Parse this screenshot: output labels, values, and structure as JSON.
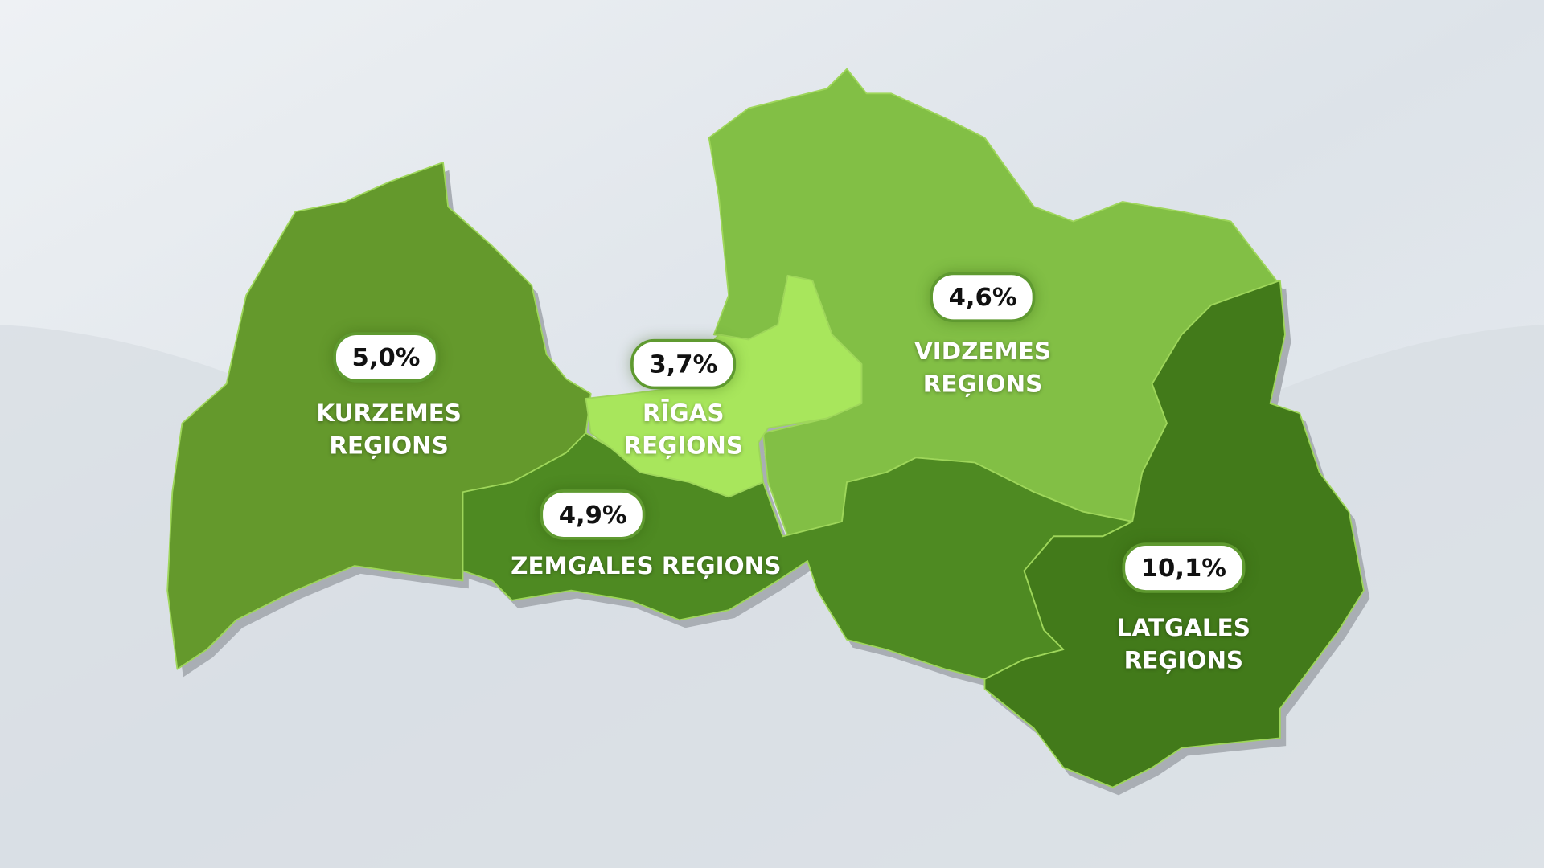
{
  "colors": {
    "kurzeme": "#64992c",
    "riga": "#a8e65c",
    "vidzeme": "#82bf45",
    "zemgale": "#4e8a22",
    "latgale": "#427a1a",
    "shadow": "#a9aeb4",
    "pill_border": "#5f9a30"
  },
  "regions": {
    "kurzeme": {
      "value": "5,0%",
      "name_line1": "KURZEMES",
      "name_line2": "REĢIONS"
    },
    "riga": {
      "value": "3,7%",
      "name_line1": "RĪGAS",
      "name_line2": "REĢIONS"
    },
    "vidzeme": {
      "value": "4,6%",
      "name_line1": "VIDZEMES",
      "name_line2": "REĢIONS"
    },
    "zemgale": {
      "value": "4,9%",
      "name_line1": "ZEMGALES REĢIONS"
    },
    "latgale": {
      "value": "10,1%",
      "name_line1": "LATGALES",
      "name_line2": "REĢIONS"
    }
  }
}
